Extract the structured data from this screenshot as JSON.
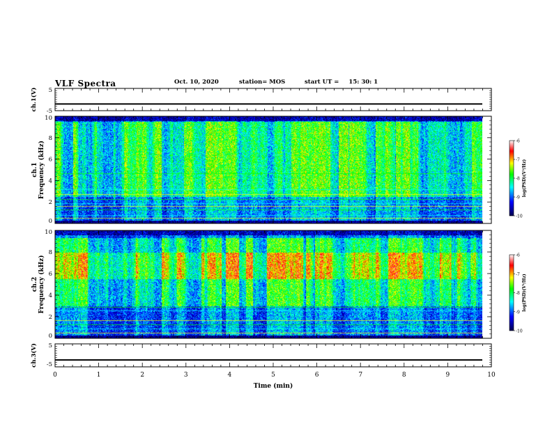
{
  "header": {
    "title": "VLF Spectra",
    "date": "Oct. 10, 2020",
    "station": "station= MOS",
    "start_label": "start  UT =",
    "start_time": "15: 30: 1"
  },
  "colors": {
    "colormap": [
      "#000050",
      "#0000ff",
      "#00ffff",
      "#00ff00",
      "#ffff00",
      "#ff0000",
      "#ffffff"
    ],
    "trace": "#000000",
    "frame": "#000000"
  },
  "chart_data": [
    {
      "type": "line",
      "name": "ch1-waveform",
      "ylabel": "ch.1(V)",
      "ylim": [
        -5,
        5
      ],
      "yticks": [
        "5",
        "-5"
      ],
      "x": [
        0,
        10
      ],
      "values": [
        -2,
        -2
      ]
    },
    {
      "type": "heatmap",
      "name": "ch1-spectrogram",
      "ylabel_channel": "ch.1",
      "ylabel": "Frequency (kHz)",
      "ylim": [
        0,
        10
      ],
      "yticks": [
        "0",
        "2",
        "4",
        "6",
        "8",
        "10"
      ],
      "xlim": [
        0,
        10
      ],
      "colorbar": {
        "label": "log(PSD)(V²/Hz)",
        "range": [
          -10,
          -6
        ],
        "ticks": [
          "-6",
          "-7",
          "-8",
          "-9",
          "-10"
        ]
      },
      "lines_khz": [
        0.5,
        0.8,
        1.3,
        1.6,
        1.9,
        2.3,
        2.7,
        3.2,
        4.7
      ],
      "hot_band_khz": [
        2.5,
        9.5
      ]
    },
    {
      "type": "heatmap",
      "name": "ch2-spectrogram",
      "ylabel_channel": "ch.2",
      "ylabel": "Frequency (kHz)",
      "ylim": [
        0,
        10
      ],
      "yticks": [
        "0",
        "2",
        "4",
        "6",
        "8",
        "10"
      ],
      "xlim": [
        0,
        10
      ],
      "colorbar": {
        "label": "log(PSD)(V²/Hz)",
        "range": [
          -10,
          -6
        ],
        "ticks": [
          "-6",
          "-7",
          "-8",
          "-9",
          "-10"
        ]
      },
      "lines_khz": [
        0.5,
        0.9,
        1.3,
        1.7,
        2.6,
        2.9
      ],
      "hot_band_khz": [
        5.5,
        8
      ]
    },
    {
      "type": "line",
      "name": "ch3-waveform",
      "ylabel": "ch.3(V)",
      "ylim": [
        -5,
        5
      ],
      "yticks": [
        "5",
        "-5"
      ],
      "x": [
        0,
        10
      ],
      "values": [
        -2,
        -2
      ]
    }
  ],
  "x_axis": {
    "label": "Time (min)",
    "range": [
      0,
      10
    ],
    "ticks": [
      "0",
      "1",
      "2",
      "3",
      "4",
      "5",
      "6",
      "7",
      "8",
      "9",
      "10"
    ]
  }
}
